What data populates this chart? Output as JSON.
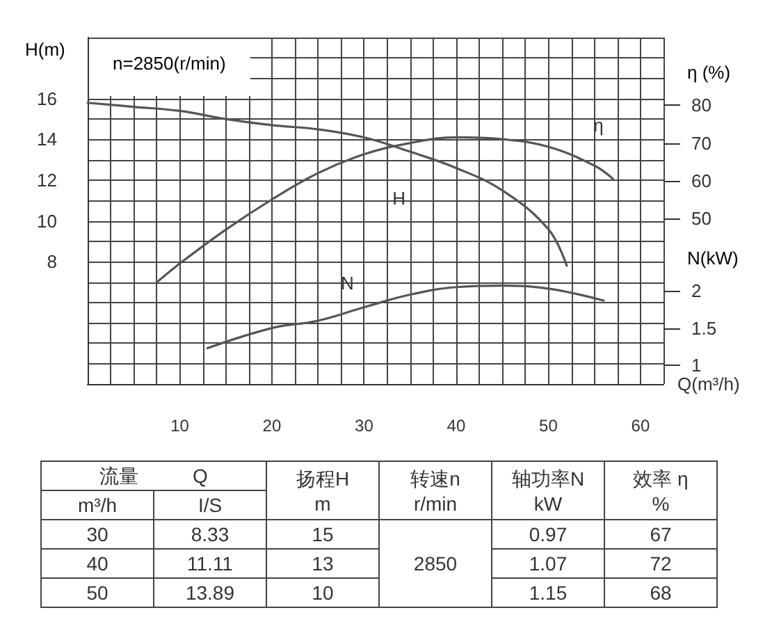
{
  "chart_data": [
    {
      "type": "line",
      "xlabel": "Q(m³/h)",
      "ylabel": "H(m)",
      "y2label": "η (%)",
      "y3label": "N(kW)",
      "annotations": [
        "n=2850(r/min)"
      ],
      "xlim": [
        0,
        62.5
      ],
      "xticks": [
        {
          "value": 0,
          "label": null
        },
        {
          "value": 2.5,
          "label": null
        },
        {
          "value": 5,
          "label": null
        },
        {
          "value": 7.5,
          "label": null
        },
        10,
        {
          "value": 12.5,
          "label": null
        },
        {
          "value": 15,
          "label": null
        },
        {
          "value": 17.5,
          "label": null
        },
        20,
        {
          "value": 22.5,
          "label": null
        },
        {
          "value": 25,
          "label": null
        },
        {
          "value": 27.5,
          "label": null
        },
        30,
        {
          "value": 32.5,
          "label": null
        },
        {
          "value": 35,
          "label": null
        },
        {
          "value": 37.5,
          "label": null
        },
        40,
        {
          "value": 42.5,
          "label": null
        },
        {
          "value": 45,
          "label": null
        },
        {
          "value": 47.5,
          "label": null
        },
        50,
        {
          "value": 52.5,
          "label": null
        },
        {
          "value": 55,
          "label": null
        },
        {
          "value": 57.5,
          "label": null
        },
        60,
        {
          "value": 62.5,
          "label": null
        }
      ],
      "ylim": [
        2,
        19
      ],
      "yticks": [
        {
          "value": 2,
          "label": null
        },
        {
          "value": 3,
          "label": null
        },
        {
          "value": 4,
          "label": null
        },
        {
          "value": 5,
          "label": null
        },
        {
          "value": 6,
          "label": null
        },
        {
          "value": 7,
          "label": null
        },
        8,
        {
          "value": 9,
          "label": null
        },
        10,
        {
          "value": 11,
          "label": null
        },
        12,
        {
          "value": 13,
          "label": null
        },
        14,
        {
          "value": 15,
          "label": null
        },
        16,
        {
          "value": 17,
          "label": null
        },
        {
          "value": 18,
          "label": null
        },
        {
          "value": 19,
          "label": null
        }
      ],
      "y2lim": [
        6,
        98
      ],
      "y2ticks": [
        50,
        60,
        70,
        80
      ],
      "y3lim": [
        0.75,
        5.4
      ],
      "y3ticks": [
        1,
        1.5,
        2
      ],
      "grid": true,
      "legend": false,
      "marker": "none",
      "line_style": "solid",
      "series": [
        {
          "name": "H",
          "color": "#555555",
          "x": [
            0,
            5,
            10,
            15,
            20,
            25,
            30,
            35,
            40,
            45,
            50,
            52
          ],
          "values": [
            15.8,
            15.6,
            15.4,
            15.0,
            14.7,
            14.5,
            14.1,
            13.4,
            12.6,
            11.5,
            9.6,
            7.8
          ]
        },
        {
          "name": "η",
          "color": "#555555",
          "axis": "y2",
          "x": [
            7.5,
            10,
            15,
            20,
            25,
            30,
            35,
            40,
            45,
            50,
            55,
            57
          ],
          "values": [
            33,
            38,
            47,
            55,
            62,
            67,
            70,
            71.5,
            71,
            69,
            64,
            60.5
          ]
        },
        {
          "name": "N",
          "color": "#555555",
          "axis": "y3",
          "x": [
            13,
            20,
            25,
            30,
            35,
            40,
            45,
            50,
            56
          ],
          "values": [
            1.23,
            1.5,
            1.6,
            1.78,
            1.95,
            2.05,
            2.07,
            2.03,
            1.87
          ]
        }
      ]
    },
    {
      "type": "other",
      "annotations": [
        "流量",
        "Q",
        "m³/h",
        "I/S",
        "扬程H",
        "m",
        "转速n",
        "r/min",
        "轴功率N",
        "kW",
        "效率 η",
        "%",
        "30",
        "8.33",
        "15",
        "2850",
        "0.97",
        "67",
        "40",
        "11.11",
        "13",
        "1.07",
        "72",
        "50",
        "13.89",
        "10",
        "1.15",
        "68"
      ]
    }
  ]
}
